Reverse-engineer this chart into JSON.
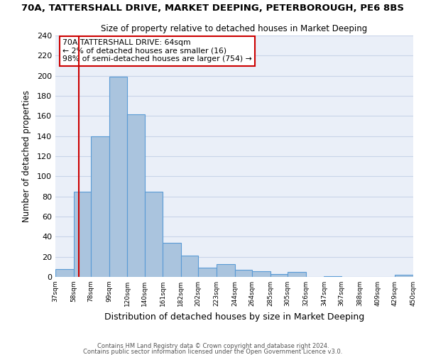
{
  "title": "70A, TATTERSHALL DRIVE, MARKET DEEPING, PETERBOROUGH, PE6 8BS",
  "subtitle": "Size of property relative to detached houses in Market Deeping",
  "xlabel": "Distribution of detached houses by size in Market Deeping",
  "ylabel": "Number of detached properties",
  "bin_edges": [
    37,
    58,
    78,
    99,
    120,
    140,
    161,
    182,
    202,
    223,
    244,
    264,
    285,
    305,
    326,
    347,
    367,
    388,
    409,
    429,
    450
  ],
  "bar_heights": [
    8,
    85,
    140,
    199,
    162,
    85,
    34,
    21,
    9,
    13,
    7,
    6,
    3,
    5,
    0,
    1,
    0,
    0,
    0,
    2
  ],
  "bar_color": "#aac4de",
  "bar_edge_color": "#5a9bd5",
  "bar_edge_width": 0.8,
  "grid_color": "#c8d4e8",
  "background_color": "#eaeff8",
  "red_line_x": 64,
  "red_line_color": "#cc0000",
  "annotation_box_text": "70A TATTERSHALL DRIVE: 64sqm\n← 2% of detached houses are smaller (16)\n98% of semi-detached houses are larger (754) →",
  "ylim": [
    0,
    240
  ],
  "yticks": [
    0,
    20,
    40,
    60,
    80,
    100,
    120,
    140,
    160,
    180,
    200,
    220,
    240
  ],
  "tick_labels": [
    "37sqm",
    "58sqm",
    "78sqm",
    "99sqm",
    "120sqm",
    "140sqm",
    "161sqm",
    "182sqm",
    "202sqm",
    "223sqm",
    "244sqm",
    "264sqm",
    "285sqm",
    "305sqm",
    "326sqm",
    "347sqm",
    "367sqm",
    "388sqm",
    "409sqm",
    "429sqm",
    "450sqm"
  ],
  "footer_line1": "Contains HM Land Registry data © Crown copyright and database right 2024.",
  "footer_line2": "Contains public sector information licensed under the Open Government Licence v3.0."
}
